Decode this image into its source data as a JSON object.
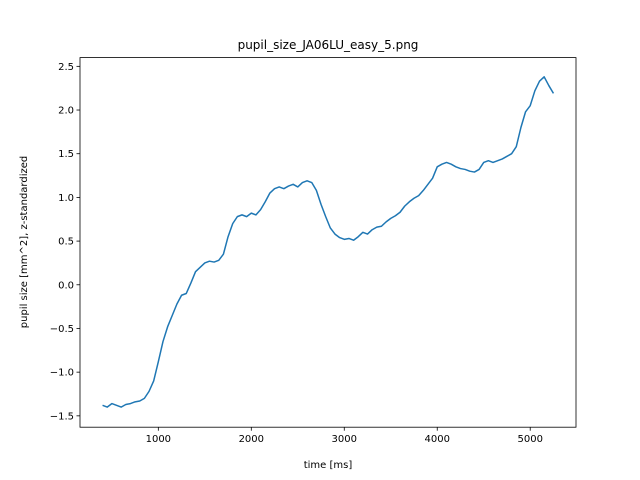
{
  "chart_data": {
    "type": "line",
    "title": "pupil_size_JA06LU_easy_5.png",
    "x_label": "time [ms]",
    "y_label": "pupil size [mm^2], z-standardized",
    "x": [
      400,
      450,
      500,
      550,
      600,
      650,
      700,
      750,
      800,
      850,
      900,
      950,
      1000,
      1050,
      1100,
      1150,
      1200,
      1250,
      1300,
      1350,
      1400,
      1450,
      1500,
      1550,
      1600,
      1650,
      1700,
      1750,
      1800,
      1850,
      1900,
      1950,
      2000,
      2050,
      2100,
      2150,
      2200,
      2250,
      2300,
      2350,
      2400,
      2450,
      2500,
      2550,
      2600,
      2650,
      2700,
      2750,
      2800,
      2850,
      2900,
      2950,
      3000,
      3050,
      3100,
      3150,
      3200,
      3250,
      3300,
      3350,
      3400,
      3450,
      3500,
      3550,
      3600,
      3650,
      3700,
      3750,
      3800,
      3850,
      3900,
      3950,
      4000,
      4050,
      4100,
      4150,
      4200,
      4250,
      4300,
      4350,
      4400,
      4450,
      4500,
      4550,
      4600,
      4650,
      4700,
      4750,
      4800,
      4850,
      4900,
      4950,
      5000,
      5050,
      5100,
      5150,
      5200,
      5250
    ],
    "series": [
      {
        "color": "#1f77b4",
        "values": [
          -1.38,
          -1.4,
          -1.36,
          -1.38,
          -1.4,
          -1.37,
          -1.36,
          -1.34,
          -1.33,
          -1.3,
          -1.22,
          -1.1,
          -0.88,
          -0.65,
          -0.48,
          -0.35,
          -0.22,
          -0.12,
          -0.1,
          0.02,
          0.15,
          0.2,
          0.25,
          0.27,
          0.26,
          0.28,
          0.35,
          0.55,
          0.7,
          0.78,
          0.8,
          0.78,
          0.82,
          0.8,
          0.86,
          0.95,
          1.05,
          1.1,
          1.12,
          1.1,
          1.13,
          1.15,
          1.12,
          1.17,
          1.19,
          1.17,
          1.08,
          0.92,
          0.78,
          0.65,
          0.58,
          0.54,
          0.52,
          0.53,
          0.51,
          0.55,
          0.6,
          0.58,
          0.63,
          0.66,
          0.67,
          0.72,
          0.76,
          0.79,
          0.83,
          0.9,
          0.95,
          0.99,
          1.02,
          1.08,
          1.15,
          1.22,
          1.35,
          1.38,
          1.4,
          1.38,
          1.35,
          1.33,
          1.32,
          1.3,
          1.29,
          1.32,
          1.4,
          1.42,
          1.4,
          1.42,
          1.44,
          1.47,
          1.5,
          1.58,
          1.8,
          1.98,
          2.05,
          2.22,
          2.33,
          2.38,
          2.28,
          2.19
        ]
      }
    ],
    "xlim": [
      157.5,
      5492.5
    ],
    "ylim": [
      -1.63,
      2.6
    ],
    "xticks": [
      1000,
      2000,
      3000,
      4000,
      5000
    ],
    "yticks": [
      {
        "value": -1.5,
        "label": "−1.5"
      },
      {
        "value": -1.0,
        "label": "−1.0"
      },
      {
        "value": -0.5,
        "label": "−0.5"
      },
      {
        "value": 0,
        "label": "0.0"
      },
      {
        "value": 0.5,
        "label": "0.5"
      },
      {
        "value": 1.0,
        "label": "1.0"
      },
      {
        "value": 1.5,
        "label": "1.5"
      },
      {
        "value": 2.0,
        "label": "2.0"
      },
      {
        "value": 2.5,
        "label": "2.5"
      }
    ]
  }
}
